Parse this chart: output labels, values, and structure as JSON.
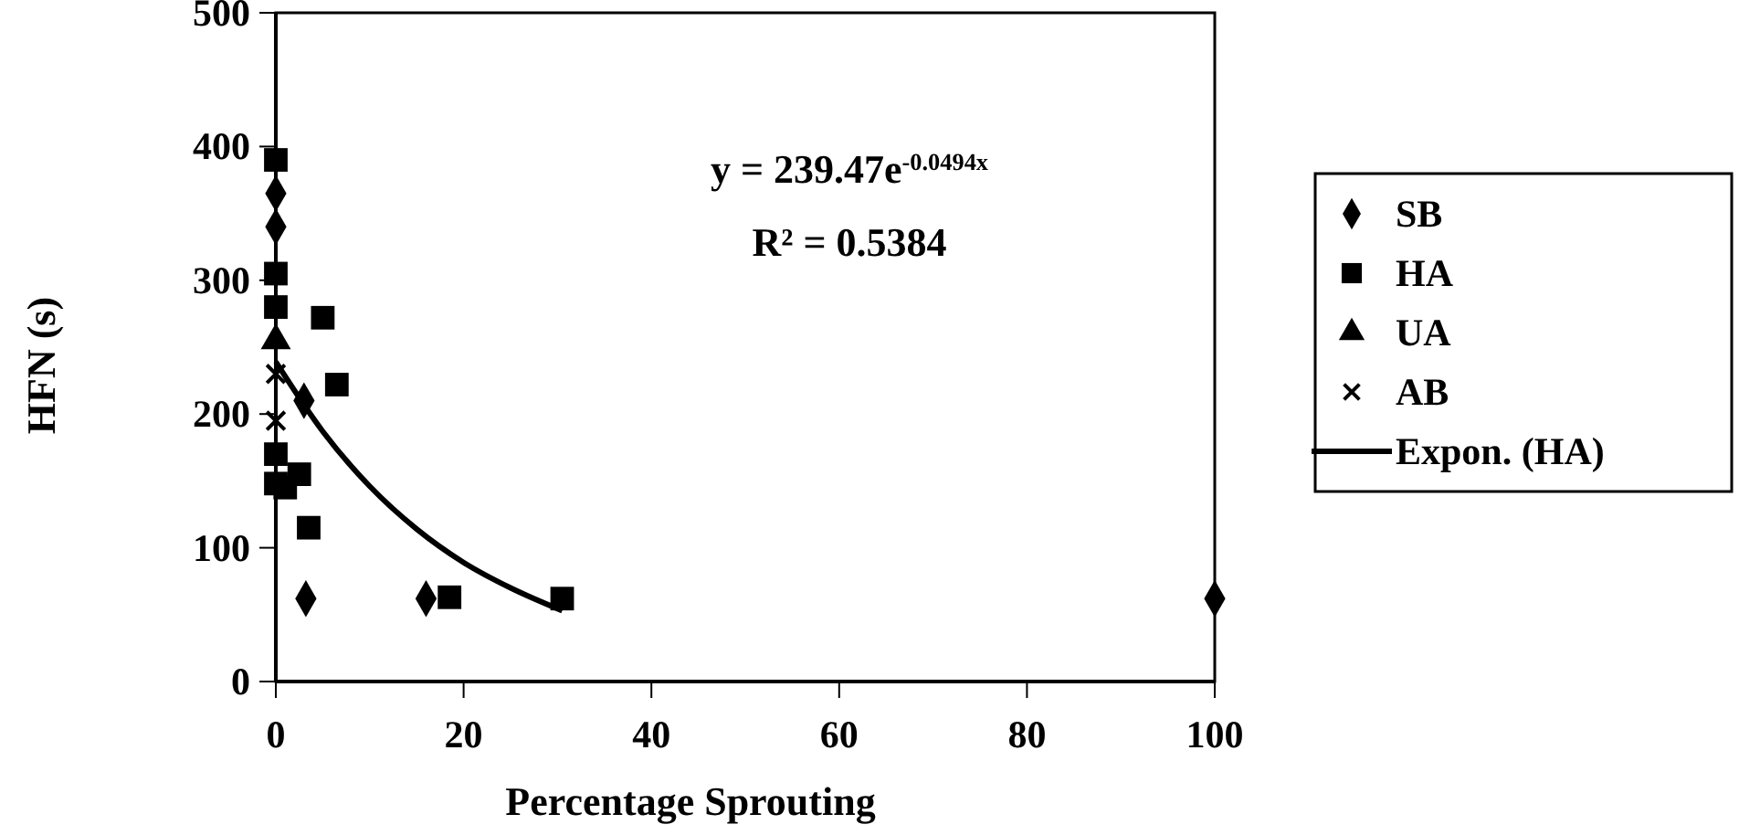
{
  "chart_data": {
    "type": "scatter",
    "xlabel": "Percentage Sprouting",
    "ylabel": "HFN (s)",
    "xlim": [
      0,
      100
    ],
    "xticks": [
      0,
      20,
      40,
      60,
      80,
      100
    ],
    "ylim": [
      0,
      500
    ],
    "yticks": [
      0,
      100,
      200,
      300,
      400,
      500
    ],
    "grid": false,
    "legend": "right",
    "annotations": [
      "y = 239.47e$^{-0.0494x}$",
      "R² = 0.5384"
    ],
    "series": [
      {
        "name": "SB",
        "color": "#000000",
        "marker": "diamond",
        "x": [
          0,
          0,
          3,
          3.2,
          16,
          100
        ],
        "values": [
          365,
          340,
          210,
          62,
          62,
          62
        ]
      },
      {
        "name": "HA",
        "color": "#000000",
        "marker": "square",
        "x": [
          0,
          0,
          0,
          0,
          0,
          5,
          6.5,
          2.5,
          1,
          3.5,
          18.5,
          30.5
        ],
        "values": [
          390,
          305,
          280,
          170,
          148,
          272,
          222,
          155,
          145,
          115,
          63,
          62
        ]
      },
      {
        "name": "UA",
        "color": "#000000",
        "marker": "triangle",
        "x": [
          0
        ],
        "values": [
          255
        ]
      },
      {
        "name": "AB",
        "color": "#000000",
        "marker": "cross",
        "x": [
          0,
          0
        ],
        "values": [
          230,
          195
        ]
      },
      {
        "name": "Expon. (HA)",
        "type": "line",
        "color": "#000000",
        "marker": "none",
        "line_style": "solid",
        "x": [
          0,
          5,
          10,
          15,
          20,
          25,
          30.5
        ],
        "values": [
          239,
          187,
          146,
          114,
          89,
          70,
          53
        ]
      }
    ]
  }
}
